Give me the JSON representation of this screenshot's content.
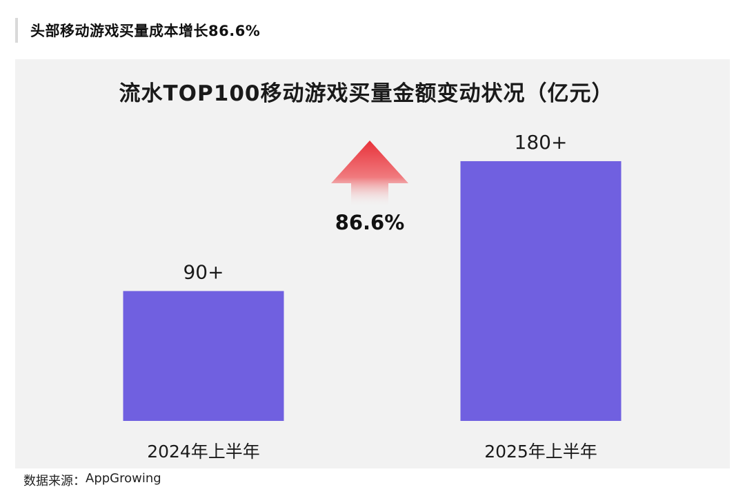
{
  "header": {
    "title": "头部移动游戏买量成本增长86.6%"
  },
  "chart_data": {
    "type": "bar",
    "title": "流水TOP100移动游戏买量金额变动状况（亿元）",
    "categories": [
      "2024年上半年",
      "2025年上半年"
    ],
    "values": [
      90,
      180
    ],
    "value_labels": [
      "90+",
      "180+"
    ],
    "ylim": [
      0,
      190
    ],
    "grid": false,
    "bar_color": "#7060e0",
    "annotation": {
      "text": "86.6%",
      "icon": "up-arrow-icon",
      "color": "#e8323a"
    }
  },
  "source": {
    "label": "数据来源：",
    "value": "AppGrowing"
  }
}
